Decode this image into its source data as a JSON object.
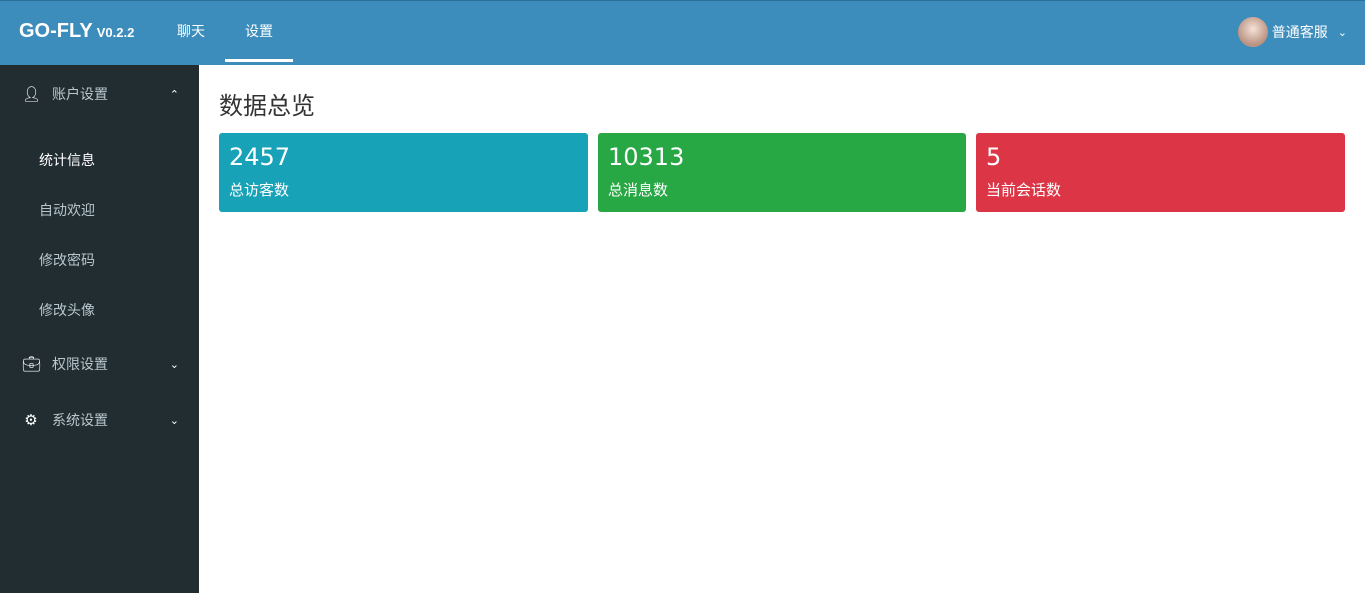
{
  "header": {
    "logo": "GO-FLY",
    "version": "V0.2.2",
    "nav": [
      {
        "label": "聊天"
      },
      {
        "label": "设置",
        "active": true
      }
    ],
    "user": "普通客服"
  },
  "sidebar": {
    "groups": [
      {
        "label": "账户设置",
        "icon": "user-icon",
        "expanded": true
      },
      {
        "label": "权限设置",
        "icon": "briefcase-icon"
      },
      {
        "label": "系统设置",
        "icon": "gear-icon"
      }
    ],
    "sub_items": [
      {
        "label": "统计信息",
        "active": true
      },
      {
        "label": "自动欢迎"
      },
      {
        "label": "修改密码"
      },
      {
        "label": "修改头像"
      }
    ]
  },
  "main": {
    "title": "数据总览",
    "cards": [
      {
        "value": "2457",
        "label": "总访客数",
        "color": "#17a2b8"
      },
      {
        "value": "10313",
        "label": "总消息数",
        "color": "#28a745"
      },
      {
        "value": "5",
        "label": "当前会话数",
        "color": "#dc3545"
      }
    ]
  }
}
